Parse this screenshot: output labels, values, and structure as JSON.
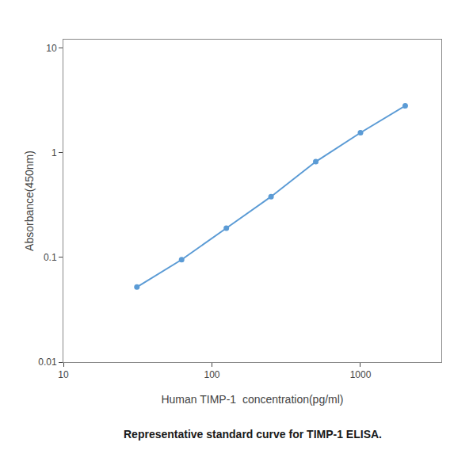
{
  "chart_data": {
    "type": "line",
    "x": [
      31.25,
      62.5,
      125,
      250,
      500,
      1000,
      2000
    ],
    "values": [
      0.052,
      0.095,
      0.19,
      0.38,
      0.82,
      1.55,
      2.8
    ],
    "color": "#5B9BD5",
    "marker": "circle",
    "xlabel": "Human TIMP-1  concentration(pg/ml)",
    "ylabel": "Absorbance(450nm)",
    "annotations": [
      "Representative standard curve for TIMP-1 ELISA."
    ],
    "log": true,
    "xlim": [
      10,
      3500
    ],
    "xticks": [
      10,
      100,
      1000
    ],
    "ylim": [
      0.01,
      12
    ],
    "yticks": [
      0.01,
      0.1,
      1,
      10
    ],
    "grid": false
  }
}
